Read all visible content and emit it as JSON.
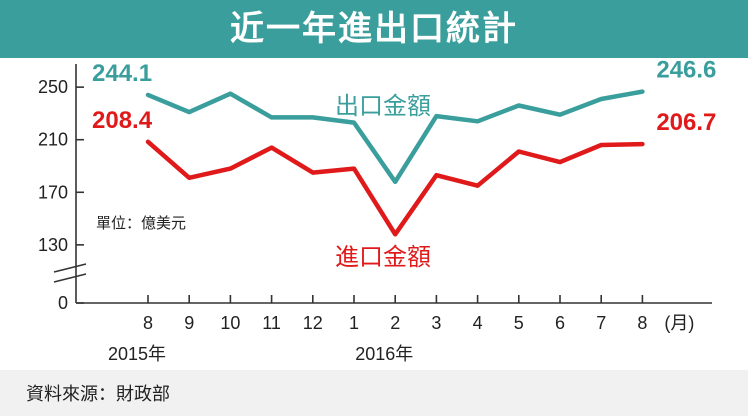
{
  "header": {
    "title": "近一年進出口統計"
  },
  "footer": {
    "source": "資料來源：財政部"
  },
  "colors": {
    "banner": "#3a9e9c",
    "export": "#3a9e9c",
    "import": "#e01a1a",
    "axis": "#333333",
    "footer_bg": "#f1f1f1"
  },
  "chart_data": {
    "type": "line",
    "title": "近一年進出口統計",
    "unit_note": "單位：億美元",
    "x_unit": "(月)",
    "categories": [
      "8",
      "9",
      "10",
      "11",
      "12",
      "1",
      "2",
      "3",
      "4",
      "5",
      "6",
      "7",
      "8"
    ],
    "year_labels": [
      {
        "label": "2015年",
        "category_index": 0
      },
      {
        "label": "2016年",
        "category_index": 6
      }
    ],
    "yticks": [
      "250",
      "210",
      "170",
      "130",
      "0"
    ],
    "axis_break": true,
    "ylim": [
      0,
      260
    ],
    "grid": false,
    "series": [
      {
        "name": "出口金額",
        "color": "#3a9e9c",
        "values": [
          244.1,
          231,
          245,
          227,
          227,
          223,
          178,
          228,
          224,
          236,
          229,
          241,
          246.6
        ],
        "start_label": "244.1",
        "end_label": "246.6"
      },
      {
        "name": "進口金額",
        "color": "#e01a1a",
        "values": [
          208.4,
          181,
          188,
          204,
          185,
          188,
          138,
          183,
          175,
          201,
          193,
          206,
          206.7
        ],
        "start_label": "208.4",
        "end_label": "206.7"
      }
    ]
  }
}
